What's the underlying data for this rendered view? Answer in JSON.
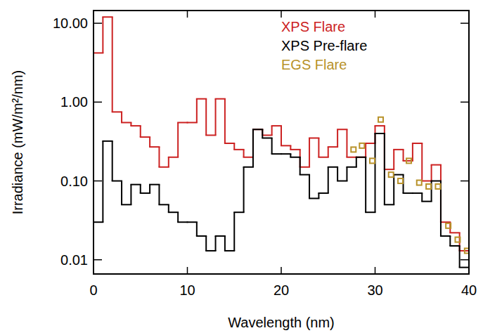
{
  "chart_data": {
    "type": "line",
    "line_style": "step",
    "log": "y",
    "legend": "upper right",
    "x_label": "Wavelength (nm)",
    "y_label": "Irradiance (mW/m²/nm)",
    "xlim": [
      0,
      40
    ],
    "ylim": [
      0.0066,
      14.5
    ],
    "xticks": [
      0,
      10,
      20,
      30,
      40
    ],
    "yticks": [
      {
        "value": 0.01,
        "label": "0.01"
      },
      {
        "value": 0.1,
        "label": "0.10"
      },
      {
        "value": 1,
        "label": "1.00"
      },
      {
        "value": 10,
        "label": "10.00"
      }
    ],
    "series": [
      {
        "name": "XPS Flare",
        "color": "#cc2222",
        "type": "step",
        "x": [
          0,
          1,
          2,
          3,
          4,
          5,
          6,
          7,
          8,
          9,
          10,
          11,
          12,
          13,
          14,
          15,
          16,
          17,
          18,
          19,
          20,
          21,
          22,
          23,
          24,
          25,
          26,
          27,
          28,
          29,
          30,
          31,
          32,
          33,
          34,
          35,
          36,
          37,
          38,
          39
        ],
        "values": [
          4.2,
          12,
          0.75,
          0.55,
          0.5,
          0.36,
          0.27,
          0.15,
          0.2,
          0.55,
          0.55,
          1.1,
          0.38,
          1.1,
          0.3,
          0.25,
          0.2,
          0.45,
          0.38,
          0.5,
          0.28,
          0.25,
          0.15,
          0.35,
          0.2,
          0.27,
          0.45,
          0.2,
          0.2,
          0.3,
          0.5,
          0.14,
          0.25,
          0.18,
          0.3,
          0.1,
          0.16,
          0.03,
          0.022,
          0.013
        ]
      },
      {
        "name": "XPS Pre-flare",
        "color": "#000000",
        "type": "step",
        "x": [
          0,
          1,
          2,
          3,
          4,
          5,
          6,
          7,
          8,
          9,
          10,
          11,
          12,
          13,
          14,
          15,
          16,
          17,
          18,
          19,
          20,
          21,
          22,
          23,
          24,
          25,
          26,
          27,
          28,
          29,
          30,
          31,
          32,
          33,
          34,
          35,
          36,
          37,
          38,
          39
        ],
        "values": [
          0.03,
          0.32,
          0.1,
          0.05,
          0.09,
          0.07,
          0.09,
          0.05,
          0.04,
          0.03,
          0.03,
          0.02,
          0.013,
          0.02,
          0.013,
          0.04,
          0.15,
          0.45,
          0.35,
          0.22,
          0.22,
          0.2,
          0.12,
          0.06,
          0.07,
          0.15,
          0.1,
          0.15,
          0.2,
          0.04,
          0.4,
          0.05,
          0.12,
          0.07,
          0.07,
          0.055,
          0.1,
          0.02,
          0.015,
          0.008
        ]
      },
      {
        "name": "EGS Flare",
        "color": "#b8922a",
        "type": "scatter",
        "marker": "square",
        "x": [
          27.7,
          28.6,
          29.7,
          30.6,
          31.7,
          32.7,
          33.6,
          34.7,
          35.7,
          36.7,
          37.8,
          38.8,
          39.8
        ],
        "values": [
          0.25,
          0.28,
          0.18,
          0.6,
          0.12,
          0.1,
          0.18,
          0.095,
          0.085,
          0.085,
          0.027,
          0.018,
          0.013
        ]
      }
    ]
  }
}
